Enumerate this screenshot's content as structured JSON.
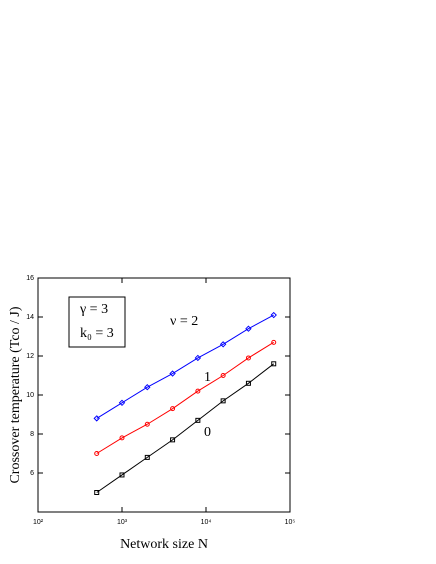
{
  "chart_data": {
    "type": "line",
    "x_label": "Network size  N",
    "y_label": "Crossover temperature  (Tco / J)",
    "annotations": [
      "γ = 3",
      "k₀ = 3"
    ],
    "x": [
      500,
      1000,
      2000,
      4000,
      8000,
      16000,
      32000,
      64000
    ],
    "series": [
      {
        "name": "ν = 2",
        "color": "#0000ff",
        "marker": "diamond",
        "values": [
          8.8,
          9.6,
          10.4,
          11.1,
          11.9,
          12.6,
          13.4,
          14.1
        ]
      },
      {
        "name": "1",
        "color": "#ff0000",
        "marker": "circle",
        "values": [
          7.0,
          7.8,
          8.5,
          9.3,
          10.2,
          11.0,
          11.9,
          12.7
        ]
      },
      {
        "name": "0",
        "color": "#000000",
        "marker": "square",
        "values": [
          5.0,
          5.9,
          6.8,
          7.7,
          8.7,
          9.7,
          10.6,
          11.6
        ]
      }
    ],
    "xscale": "log",
    "xlim": [
      100,
      100000
    ],
    "xticks": [
      {
        "value": 100,
        "label": "10²"
      },
      {
        "value": 1000,
        "label": "10³"
      },
      {
        "value": 10000,
        "label": "10⁴"
      },
      {
        "value": 100000,
        "label": "10⁵"
      }
    ],
    "ylim": [
      4,
      16
    ],
    "yticks": [
      6,
      8,
      10,
      12,
      14,
      16
    ]
  }
}
